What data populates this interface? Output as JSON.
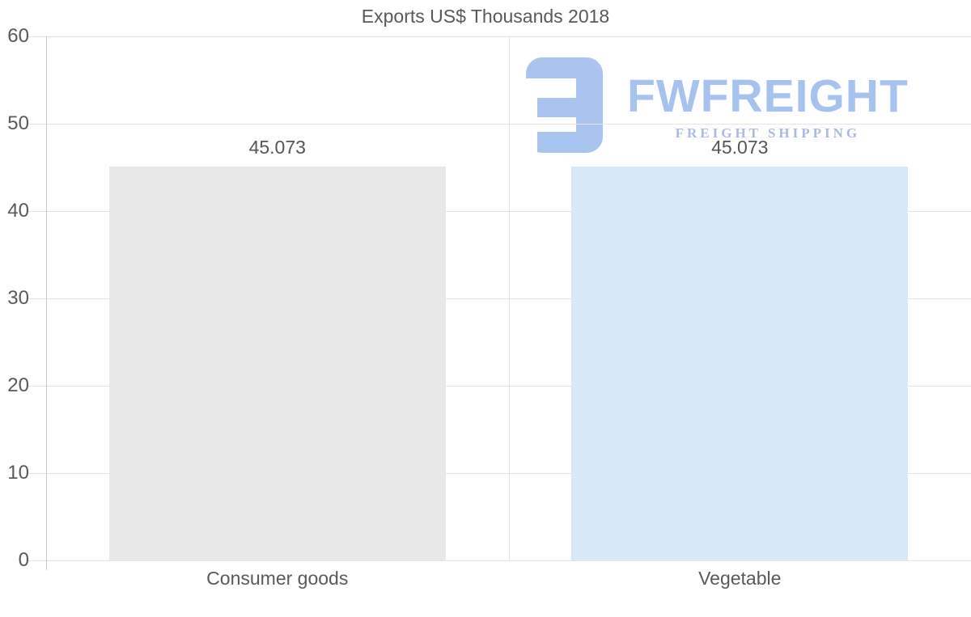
{
  "chart_data": {
    "type": "bar",
    "title": "Exports US$ Thousands 2018",
    "categories": [
      "Consumer goods",
      "Vegetable"
    ],
    "values": [
      45.073,
      45.073
    ],
    "value_labels": [
      "45.073",
      "45.073"
    ],
    "bar_colors": [
      "#e8e8e8",
      "#d9e8f9"
    ],
    "xlabel": "",
    "ylabel": "",
    "ylim": [
      0,
      60
    ],
    "yticks": [
      0,
      10,
      20,
      30,
      40,
      50,
      60
    ],
    "grid": true,
    "legend_position": "none"
  },
  "watermark": {
    "brand": "FWFREIGHT",
    "tagline": "FREIGHT SHIPPING",
    "brand_color": "#a6c3f0",
    "tagline_color": "#abb9e6",
    "icon_color": "#a9c4ee"
  },
  "colors": {
    "gridline": "#e4e4e4",
    "axis_line": "#c9c9c9",
    "text": "#595959",
    "background": "#ffffff"
  }
}
